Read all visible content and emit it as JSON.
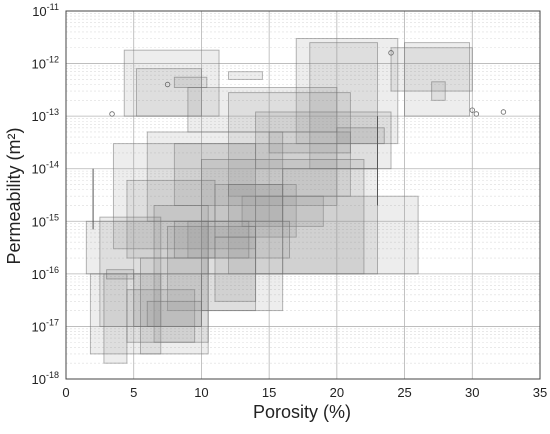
{
  "chart_data": {
    "type": "box",
    "xlabel": "Porosity (%)",
    "ylabel": "Permeability (m²)",
    "x_scale": "linear",
    "y_scale": "log",
    "xlim": [
      0,
      35
    ],
    "ylim": [
      1e-18,
      1e-11
    ],
    "x_ticks": [
      0,
      5,
      10,
      15,
      20,
      25,
      30,
      35
    ],
    "x_tick_labels": [
      "0",
      "5",
      "10",
      "15",
      "20",
      "25",
      "30",
      "35"
    ],
    "y_tick_exponents": [
      -18,
      -17,
      -16,
      -15,
      -14,
      -13,
      -12,
      -11
    ],
    "y_tick_base": "10",
    "grid": true,
    "minor_grid": true,
    "fill_color": "#8c8c8c",
    "edge_color": "#6e6e6e",
    "rectangles": [
      {
        "x": [
          4.3,
          11.3
        ],
        "y": [
          1e-13,
          1.8e-12
        ]
      },
      {
        "x": [
          5.2,
          10.0
        ],
        "y": [
          1e-13,
          8e-13
        ]
      },
      {
        "x": [
          8.0,
          10.4
        ],
        "y": [
          3.5e-13,
          5.5e-13
        ]
      },
      {
        "x": [
          12.0,
          14.5
        ],
        "y": [
          5e-13,
          7e-13
        ]
      },
      {
        "x": [
          17.0,
          24.5
        ],
        "y": [
          3e-14,
          3e-12
        ]
      },
      {
        "x": [
          18.0,
          23.0
        ],
        "y": [
          1e-14,
          2.5e-12
        ]
      },
      {
        "x": [
          25.0,
          29.8
        ],
        "y": [
          1e-13,
          2.5e-12
        ]
      },
      {
        "x": [
          24.0,
          30.0
        ],
        "y": [
          3e-13,
          2e-12
        ]
      },
      {
        "x": [
          27.0,
          28.0
        ],
        "y": [
          2e-13,
          4.5e-13
        ]
      },
      {
        "x": [
          9.0,
          20.0
        ],
        "y": [
          5e-14,
          3.5e-13
        ]
      },
      {
        "x": [
          12.0,
          21.0
        ],
        "y": [
          3e-15,
          2.8e-13
        ]
      },
      {
        "x": [
          14.0,
          24.0
        ],
        "y": [
          1e-14,
          1.2e-13
        ]
      },
      {
        "x": [
          15.0,
          21.0
        ],
        "y": [
          2e-14,
          5e-14
        ]
      },
      {
        "x": [
          20.0,
          23.5
        ],
        "y": [
          3e-14,
          6e-14
        ]
      },
      {
        "x": [
          6.0,
          16.0
        ],
        "y": [
          1e-15,
          5e-14
        ]
      },
      {
        "x": [
          8.0,
          20.0
        ],
        "y": [
          2e-15,
          3e-14
        ]
      },
      {
        "x": [
          3.5,
          14.0
        ],
        "y": [
          3e-16,
          3e-14
        ]
      },
      {
        "x": [
          4.5,
          11.0
        ],
        "y": [
          2e-16,
          6e-15
        ]
      },
      {
        "x": [
          11.0,
          17.0
        ],
        "y": [
          5e-16,
          5e-15
        ]
      },
      {
        "x": [
          13.0,
          19.0
        ],
        "y": [
          8e-16,
          3e-15
        ]
      },
      {
        "x": [
          14.0,
          26.0
        ],
        "y": [
          1e-16,
          3e-15
        ]
      },
      {
        "x": [
          10.0,
          22.0
        ],
        "y": [
          1e-16,
          1.5e-14
        ]
      },
      {
        "x": [
          16.0,
          23.0
        ],
        "y": [
          1e-16,
          1e-14
        ]
      },
      {
        "x": [
          9.0,
          16.5
        ],
        "y": [
          2e-16,
          1e-15
        ]
      },
      {
        "x": [
          12.0,
          16.0
        ],
        "y": [
          1e-16,
          5e-15
        ]
      },
      {
        "x": [
          1.5,
          10.5
        ],
        "y": [
          1e-16,
          1e-15
        ]
      },
      {
        "x": [
          2.5,
          7.0
        ],
        "y": [
          1e-17,
          1.2e-15
        ]
      },
      {
        "x": [
          6.5,
          10.5
        ],
        "y": [
          5e-18,
          2e-15
        ]
      },
      {
        "x": [
          7.5,
          14.0
        ],
        "y": [
          2e-17,
          8e-16
        ]
      },
      {
        "x": [
          8.0,
          13.5
        ],
        "y": [
          2e-16,
          1e-15
        ]
      },
      {
        "x": [
          1.8,
          7.0
        ],
        "y": [
          3e-18,
          1e-16
        ]
      },
      {
        "x": [
          2.8,
          4.5
        ],
        "y": [
          2e-18,
          1e-16
        ]
      },
      {
        "x": [
          4.5,
          9.5
        ],
        "y": [
          5e-18,
          5e-17
        ]
      },
      {
        "x": [
          5.0,
          10.0
        ],
        "y": [
          1e-17,
          1e-16
        ]
      },
      {
        "x": [
          5.5,
          10.5
        ],
        "y": [
          3e-18,
          2e-16
        ]
      },
      {
        "x": [
          6.0,
          10.0
        ],
        "y": [
          1e-17,
          3e-17
        ]
      },
      {
        "x": [
          10.0,
          16.0
        ],
        "y": [
          2e-17,
          1e-16
        ]
      },
      {
        "x": [
          11.0,
          14.0
        ],
        "y": [
          3e-17,
          5e-16
        ]
      },
      {
        "x": [
          3.0,
          5.0
        ],
        "y": [
          8e-17,
          1.2e-16
        ]
      }
    ],
    "error_bars": [
      {
        "x": 2.0,
        "y": [
          7e-16,
          1e-14
        ]
      },
      {
        "x": 23.0,
        "y": [
          2e-15,
          1e-13
        ]
      }
    ],
    "points": [
      {
        "x": 3.4,
        "y": 1.1e-13
      },
      {
        "x": 24.0,
        "y": 1.6e-12
      },
      {
        "x": 30.0,
        "y": 1.3e-13
      },
      {
        "x": 30.3,
        "y": 1.1e-13
      },
      {
        "x": 32.3,
        "y": 1.2e-13
      },
      {
        "x": 7.5,
        "y": 4e-13
      }
    ]
  }
}
